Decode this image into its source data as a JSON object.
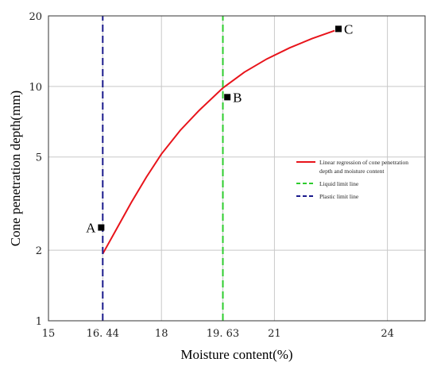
{
  "chart_data": {
    "type": "line",
    "xlabel": "Moisture content(%)",
    "ylabel": "Cone penetration depth(mm)",
    "xlim": [
      15,
      25
    ],
    "ylim": [
      1,
      20
    ],
    "yscale": "log",
    "xticks": [
      15,
      16.44,
      18,
      19.63,
      21,
      24
    ],
    "xtick_labels": [
      "15",
      "16. 44",
      "18",
      "19. 63",
      "21",
      "24"
    ],
    "yticks": [
      1,
      2,
      5,
      10,
      20
    ],
    "ytick_labels": [
      "1",
      "2",
      "5",
      "10",
      "20"
    ],
    "grid": true,
    "legend_position": "right",
    "points": [
      {
        "label": "A",
        "x": 16.4,
        "y": 2.5
      },
      {
        "label": "B",
        "x": 19.75,
        "y": 9.0
      },
      {
        "label": "C",
        "x": 22.7,
        "y": 17.6
      }
    ],
    "series": [
      {
        "name": "Linear regression of  cone penetration depth and moisture content",
        "legend_lines": [
          "Linear regression of  cone penetration",
          "depth and moisture content"
        ],
        "color": "#e8141b",
        "style": "solid",
        "x": [
          16.44,
          16.8,
          17.2,
          17.6,
          18.0,
          18.5,
          19.0,
          19.63,
          20.2,
          20.8,
          21.4,
          22.0,
          22.6
        ],
        "y": [
          1.93,
          2.45,
          3.2,
          4.1,
          5.15,
          6.5,
          7.9,
          9.85,
          11.5,
          13.1,
          14.6,
          16.0,
          17.3
        ]
      },
      {
        "name": "Liquid limit line",
        "legend_lines": [
          "Liquid limit line"
        ],
        "color": "#2ecc2e",
        "style": "dashed",
        "x": [
          19.63,
          19.63
        ],
        "y": [
          1,
          20
        ]
      },
      {
        "name": "Plastic limit line",
        "legend_lines": [
          "Plastic limit line"
        ],
        "color": "#1a1a8c",
        "style": "dashed",
        "x": [
          16.44,
          16.44
        ],
        "y": [
          1,
          20
        ]
      }
    ]
  }
}
